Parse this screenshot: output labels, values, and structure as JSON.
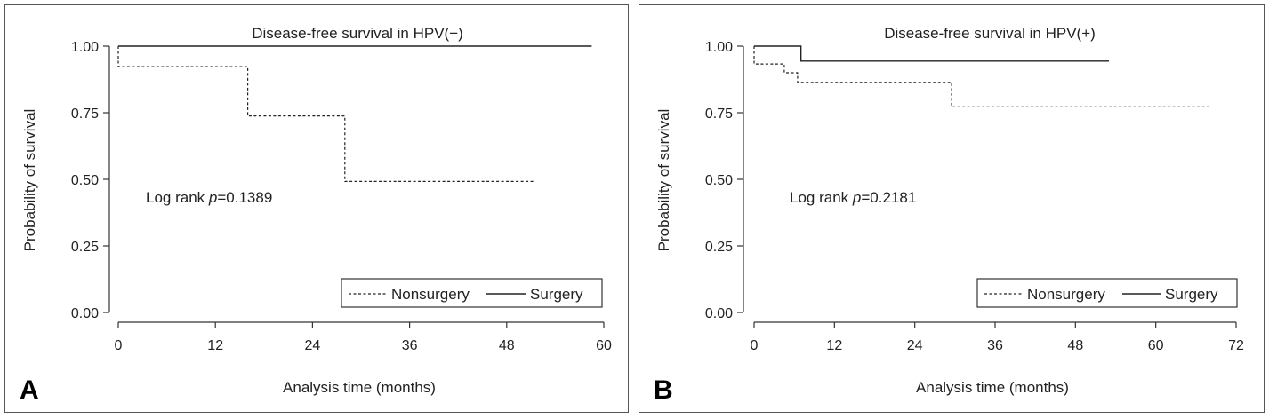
{
  "chart_data": [
    {
      "type": "line",
      "panel_label": "A",
      "title": "Disease-free survival in HPV(−)",
      "xlabel": "Analysis time (months)",
      "ylabel": "Probability of survival",
      "xlim": [
        0,
        60
      ],
      "ylim": [
        0,
        1
      ],
      "xticks": [
        "0",
        "12",
        "24",
        "36",
        "48",
        "60"
      ],
      "yticks": [
        "0.00",
        "0.25",
        "0.50",
        "0.75",
        "1.00"
      ],
      "annotation": {
        "prefix": "Log rank ",
        "italic": "p",
        "suffix": "=0.1389"
      },
      "legend": {
        "placement": "bottom-right",
        "entries": [
          "Nonsurgery",
          "Surgery"
        ]
      },
      "series": [
        {
          "name": "Nonsurgery",
          "style": "dashed",
          "x": [
            0,
            0,
            16,
            16,
            28,
            28,
            51.5
          ],
          "y": [
            1.0,
            0.923,
            0.923,
            0.738,
            0.738,
            0.492,
            0.492
          ]
        },
        {
          "name": "Surgery",
          "style": "solid",
          "x": [
            0,
            58.5
          ],
          "y": [
            1.0,
            1.0
          ]
        }
      ]
    },
    {
      "type": "line",
      "panel_label": "B",
      "title": "Disease-free survival in HPV(+)",
      "xlabel": "Analysis time (months)",
      "ylabel": "Probability of survival",
      "xlim": [
        0,
        72
      ],
      "ylim": [
        0,
        1
      ],
      "xticks": [
        "0",
        "12",
        "24",
        "36",
        "48",
        "60",
        "72"
      ],
      "yticks": [
        "0.00",
        "0.25",
        "0.50",
        "0.75",
        "1.00"
      ],
      "annotation": {
        "prefix": "Log rank ",
        "italic": "p",
        "suffix": "=0.2181"
      },
      "legend": {
        "placement": "bottom-right",
        "entries": [
          "Nonsurgery",
          "Surgery"
        ]
      },
      "series": [
        {
          "name": "Nonsurgery",
          "style": "dashed",
          "x": [
            0,
            0,
            4.5,
            4.5,
            6.5,
            6.5,
            29.5,
            29.5,
            68
          ],
          "y": [
            1.0,
            0.933,
            0.933,
            0.9,
            0.9,
            0.864,
            0.864,
            0.772,
            0.772
          ]
        },
        {
          "name": "Surgery",
          "style": "solid",
          "x": [
            0,
            7,
            7,
            53
          ],
          "y": [
            1.0,
            1.0,
            0.944,
            0.944
          ]
        }
      ]
    }
  ]
}
